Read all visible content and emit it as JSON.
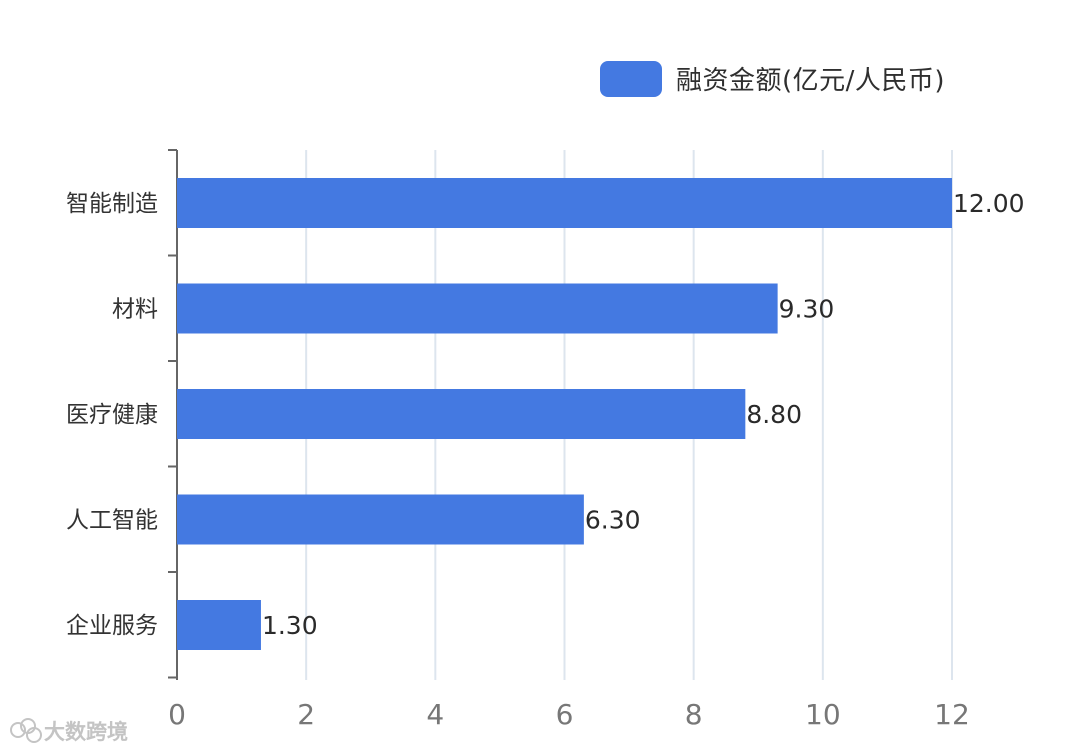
{
  "chart_data": {
    "type": "bar",
    "orientation": "horizontal",
    "categories": [
      "智能制造",
      "材料",
      "医疗健康",
      "人工智能",
      "企业服务"
    ],
    "series": [
      {
        "name": "融资金额(亿元/人民币)",
        "values": [
          12.0,
          9.3,
          8.8,
          6.3,
          1.3
        ],
        "data_labels": [
          "12.00",
          "9.30",
          "8.80",
          "6.30",
          "1.30"
        ]
      }
    ],
    "x_ticks": [
      "0",
      "2",
      "4",
      "6",
      "8",
      "10",
      "12"
    ],
    "xlim": [
      0,
      12
    ],
    "grid": true,
    "legend": "top-right"
  },
  "colors": {
    "bar": "#4479e1",
    "grid": "#dde5ee",
    "axis": "#666666",
    "category_label": "#333333",
    "tick_label": "#777777",
    "data_label": "#2a2a2a"
  },
  "watermark": {
    "text": "大数跨境"
  }
}
